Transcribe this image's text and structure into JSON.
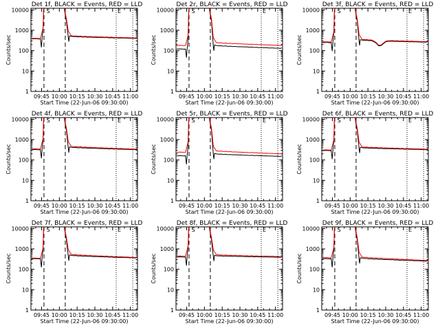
{
  "figure": {
    "background": "#ffffff",
    "axis_color": "#000000"
  },
  "x_axis": {
    "label": "Start Time (22-Jun-06 09:30:00)",
    "range": [
      "09:36",
      "11:06"
    ],
    "ticks": [
      "09:45",
      "10:00",
      "10:15",
      "10:30",
      "10:45",
      "11:00"
    ]
  },
  "y_axis": {
    "label": "Counts/sec",
    "scale": "log",
    "range": [
      1,
      12000
    ],
    "ticks": [
      "1",
      "10",
      "100",
      "1000",
      "10000"
    ]
  },
  "markers": {
    "dashed_times": [
      "09:47",
      "10:05"
    ],
    "dotted_times": [
      "10:48",
      "11:02"
    ],
    "flag_texts": [
      "S",
      "E"
    ],
    "flag_times": [
      "09:48",
      "10:48"
    ]
  },
  "series_styles": [
    {
      "name": "BLACK = Events",
      "color": "#000000"
    },
    {
      "name": "RED = LLD",
      "color": "#ff0000"
    }
  ],
  "chart_data": [
    {
      "type": "line",
      "title": "Det 1f, BLACK = Events, RED = LLD",
      "base_black": 380,
      "base_red": 400,
      "post_black": 500,
      "post_red": 540,
      "end_black": 400,
      "end_red": 420,
      "dip": false
    },
    {
      "type": "line",
      "title": "Det 2r, BLACK = Events, RED = LLD",
      "base_black": 120,
      "base_red": 180,
      "post_black": 180,
      "post_red": 250,
      "end_black": 130,
      "end_red": 180,
      "dip": false
    },
    {
      "type": "line",
      "title": "Det 3f, BLACK = Events, RED = LLD",
      "base_black": 250,
      "base_red": 270,
      "post_black": 330,
      "post_red": 360,
      "end_black": 260,
      "end_red": 275,
      "dip": true
    },
    {
      "type": "line",
      "title": "Det 4f, BLACK = Events, RED = LLD",
      "base_black": 320,
      "base_red": 350,
      "post_black": 420,
      "post_red": 470,
      "end_black": 320,
      "end_red": 340,
      "dip": false
    },
    {
      "type": "line",
      "title": "Det 5r, BLACK = Events, RED = LLD",
      "base_black": 160,
      "base_red": 240,
      "post_black": 200,
      "post_red": 280,
      "end_black": 150,
      "end_red": 200,
      "dip": false
    },
    {
      "type": "line",
      "title": "Det 6f, BLACK = Events, RED = LLD",
      "base_black": 290,
      "base_red": 310,
      "post_black": 400,
      "post_red": 440,
      "end_black": 320,
      "end_red": 340,
      "dip": false
    },
    {
      "type": "line",
      "title": "Det 7f, BLACK = Events, RED = LLD",
      "base_black": 330,
      "base_red": 350,
      "post_black": 480,
      "post_red": 540,
      "end_black": 360,
      "end_red": 380,
      "dip": false
    },
    {
      "type": "line",
      "title": "Det 8f, BLACK = Events, RED = LLD",
      "base_black": 400,
      "base_red": 440,
      "post_black": 460,
      "post_red": 520,
      "end_black": 390,
      "end_red": 420,
      "dip": false
    },
    {
      "type": "line",
      "title": "Det 9f, BLACK = Events, RED = LLD",
      "base_black": 330,
      "base_red": 370,
      "post_black": 350,
      "post_red": 400,
      "end_black": 250,
      "end_red": 270,
      "dip": false
    }
  ]
}
